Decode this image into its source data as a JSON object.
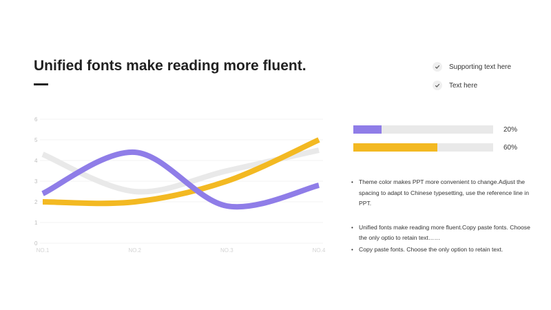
{
  "title": "Unified fonts make reading more fluent.",
  "checklist": [
    {
      "icon": "check-icon",
      "label": "Supporting text here"
    },
    {
      "icon": "check-icon",
      "label": "Text here"
    }
  ],
  "progress": [
    {
      "percent": 20,
      "label": "20%",
      "color": "#8f7de8"
    },
    {
      "percent": 60,
      "label": "60%",
      "color": "#f3b922"
    }
  ],
  "bullets": [
    "Theme  color makes PPT more convenient to change.Adjust the spacing to adapt to Chinese typesetting, use the reference line in PPT.",
    "Unified fonts make reading more fluent.Copy paste fonts. Choose the only optio to retain text……",
    "Copy paste  fonts. Choose the only option to retain text."
  ],
  "chart_data": {
    "type": "line",
    "categories": [
      "NO.1",
      "NO.2",
      "NO.3",
      "NO.4"
    ],
    "ylim": [
      0,
      6
    ],
    "yticks": [
      0,
      1,
      2,
      3,
      4,
      5,
      6
    ],
    "grid": true,
    "series": [
      {
        "values": [
          4.3,
          2.5,
          3.5,
          4.5
        ],
        "color": "#e9e9e9"
      },
      {
        "values": [
          2.0,
          2.0,
          3.0,
          5.0
        ],
        "color": "#f3b922"
      },
      {
        "values": [
          2.4,
          4.4,
          1.8,
          2.8
        ],
        "color": "#8f7de8"
      }
    ]
  }
}
